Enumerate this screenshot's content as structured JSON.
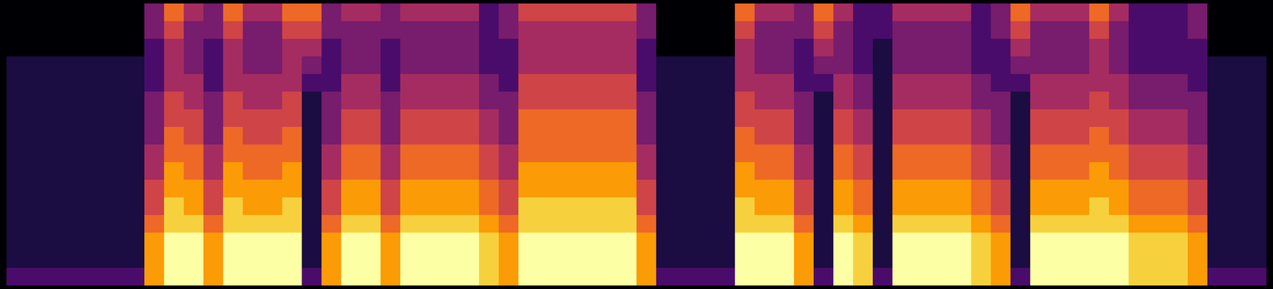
{
  "chart_data": {
    "type": "heatmap",
    "color": "inferno",
    "tick_labels": false,
    "zlim": [
      0,
      9
    ],
    "cells": [
      [
        0,
        0,
        0,
        1,
        1,
        1,
        1,
        1,
        1,
        1,
        1,
        1,
        1,
        1,
        1,
        2
      ],
      [
        0,
        0,
        0,
        1,
        1,
        1,
        1,
        1,
        1,
        1,
        1,
        1,
        1,
        1,
        1,
        2
      ],
      [
        0,
        0,
        0,
        1,
        1,
        1,
        1,
        1,
        1,
        1,
        1,
        1,
        1,
        1,
        1,
        2
      ],
      [
        0,
        0,
        0,
        1,
        1,
        1,
        1,
        1,
        1,
        1,
        1,
        1,
        1,
        1,
        1,
        2
      ],
      [
        0,
        0,
        0,
        1,
        1,
        1,
        1,
        1,
        1,
        1,
        1,
        1,
        1,
        1,
        1,
        2
      ],
      [
        0,
        0,
        0,
        1,
        1,
        1,
        1,
        1,
        1,
        1,
        1,
        1,
        1,
        1,
        1,
        2
      ],
      [
        0,
        0,
        0,
        1,
        1,
        1,
        1,
        1,
        1,
        1,
        1,
        1,
        1,
        1,
        1,
        2
      ],
      [
        3,
        3,
        2,
        2,
        2,
        3,
        3,
        3,
        4,
        4,
        5,
        5,
        6,
        7,
        7,
        7
      ],
      [
        6,
        5,
        4,
        4,
        4,
        5,
        5,
        6,
        6,
        7,
        7,
        8,
        8,
        9,
        9,
        9
      ],
      [
        4,
        3,
        3,
        3,
        4,
        4,
        5,
        5,
        6,
        6,
        7,
        7,
        8,
        9,
        9,
        9
      ],
      [
        3,
        3,
        2,
        2,
        2,
        3,
        3,
        3,
        4,
        4,
        5,
        5,
        6,
        7,
        7,
        7
      ],
      [
        6,
        5,
        4,
        4,
        4,
        5,
        5,
        6,
        6,
        7,
        7,
        8,
        8,
        9,
        9,
        9
      ],
      [
        4,
        3,
        3,
        3,
        4,
        4,
        5,
        5,
        6,
        6,
        7,
        7,
        8,
        9,
        9,
        9
      ],
      [
        4,
        3,
        3,
        3,
        4,
        4,
        5,
        5,
        6,
        6,
        7,
        7,
        8,
        9,
        9,
        9
      ],
      [
        6,
        5,
        4,
        4,
        4,
        5,
        5,
        6,
        6,
        7,
        7,
        8,
        8,
        9,
        9,
        9
      ],
      [
        6,
        5,
        4,
        3,
        2,
        1,
        1,
        1,
        1,
        1,
        1,
        1,
        1,
        1,
        1,
        2
      ],
      [
        3,
        3,
        2,
        2,
        2,
        3,
        3,
        3,
        4,
        4,
        5,
        5,
        6,
        7,
        7,
        7
      ],
      [
        4,
        3,
        3,
        3,
        4,
        4,
        5,
        5,
        6,
        6,
        7,
        7,
        8,
        9,
        9,
        9
      ],
      [
        4,
        3,
        3,
        3,
        4,
        4,
        5,
        5,
        6,
        6,
        7,
        7,
        8,
        9,
        9,
        9
      ],
      [
        3,
        3,
        2,
        2,
        2,
        3,
        3,
        3,
        4,
        4,
        5,
        5,
        6,
        7,
        7,
        7
      ],
      [
        4,
        3,
        3,
        3,
        4,
        4,
        5,
        5,
        6,
        6,
        7,
        7,
        8,
        9,
        9,
        9
      ],
      [
        4,
        3,
        3,
        3,
        4,
        4,
        5,
        5,
        6,
        6,
        7,
        7,
        8,
        9,
        9,
        9
      ],
      [
        4,
        3,
        3,
        3,
        4,
        4,
        5,
        5,
        6,
        6,
        7,
        7,
        8,
        9,
        9,
        9
      ],
      [
        4,
        3,
        3,
        3,
        4,
        4,
        5,
        5,
        6,
        6,
        7,
        7,
        8,
        9,
        9,
        9
      ],
      [
        2,
        2,
        2,
        2,
        3,
        3,
        4,
        4,
        5,
        5,
        6,
        6,
        7,
        8,
        8,
        8
      ],
      [
        3,
        3,
        2,
        2,
        2,
        3,
        3,
        3,
        4,
        4,
        5,
        5,
        6,
        7,
        7,
        7
      ],
      [
        5,
        4,
        4,
        4,
        5,
        5,
        6,
        6,
        6,
        7,
        7,
        8,
        8,
        9,
        9,
        9
      ],
      [
        5,
        4,
        4,
        4,
        5,
        5,
        6,
        6,
        6,
        7,
        7,
        8,
        8,
        9,
        9,
        9
      ],
      [
        5,
        4,
        4,
        4,
        5,
        5,
        6,
        6,
        6,
        7,
        7,
        8,
        8,
        9,
        9,
        9
      ],
      [
        5,
        4,
        4,
        4,
        5,
        5,
        6,
        6,
        6,
        7,
        7,
        8,
        8,
        9,
        9,
        9
      ],
      [
        5,
        4,
        4,
        4,
        5,
        5,
        6,
        6,
        6,
        7,
        7,
        8,
        8,
        9,
        9,
        9
      ],
      [
        5,
        4,
        4,
        4,
        5,
        5,
        6,
        6,
        6,
        7,
        7,
        8,
        8,
        9,
        9,
        9
      ],
      [
        3,
        3,
        2,
        2,
        2,
        3,
        3,
        3,
        4,
        4,
        5,
        5,
        6,
        7,
        7,
        7
      ],
      [
        0,
        0,
        0,
        1,
        1,
        1,
        1,
        1,
        1,
        1,
        1,
        1,
        1,
        1,
        1,
        2
      ],
      [
        0,
        0,
        0,
        1,
        1,
        1,
        1,
        1,
        1,
        1,
        1,
        1,
        1,
        1,
        1,
        2
      ],
      [
        0,
        0,
        0,
        1,
        1,
        1,
        1,
        1,
        1,
        1,
        1,
        1,
        1,
        1,
        1,
        2
      ],
      [
        0,
        0,
        0,
        1,
        1,
        1,
        1,
        1,
        1,
        1,
        1,
        1,
        1,
        1,
        1,
        2
      ],
      [
        6,
        5,
        4,
        4,
        4,
        5,
        5,
        6,
        6,
        7,
        7,
        8,
        8,
        9,
        9,
        9
      ],
      [
        4,
        3,
        3,
        3,
        4,
        4,
        5,
        5,
        6,
        6,
        7,
        7,
        8,
        9,
        9,
        9
      ],
      [
        4,
        3,
        3,
        3,
        4,
        4,
        5,
        5,
        6,
        6,
        7,
        7,
        8,
        9,
        9,
        9
      ],
      [
        3,
        3,
        2,
        2,
        2,
        3,
        3,
        3,
        4,
        4,
        5,
        5,
        6,
        7,
        7,
        7
      ],
      [
        6,
        5,
        4,
        3,
        2,
        1,
        1,
        1,
        1,
        1,
        1,
        1,
        1,
        1,
        1,
        2
      ],
      [
        4,
        3,
        3,
        3,
        4,
        4,
        5,
        5,
        6,
        6,
        7,
        7,
        8,
        9,
        9,
        9
      ],
      [
        2,
        2,
        2,
        2,
        3,
        3,
        4,
        4,
        5,
        5,
        6,
        6,
        7,
        8,
        8,
        8
      ],
      [
        2,
        2,
        1,
        1,
        1,
        1,
        1,
        1,
        1,
        1,
        1,
        1,
        1,
        1,
        1,
        2
      ],
      [
        4,
        3,
        3,
        3,
        4,
        4,
        5,
        5,
        6,
        6,
        7,
        7,
        8,
        9,
        9,
        9
      ],
      [
        4,
        3,
        3,
        3,
        4,
        4,
        5,
        5,
        6,
        6,
        7,
        7,
        8,
        9,
        9,
        9
      ],
      [
        4,
        3,
        3,
        3,
        4,
        4,
        5,
        5,
        6,
        6,
        7,
        7,
        8,
        9,
        9,
        9
      ],
      [
        4,
        3,
        3,
        3,
        4,
        4,
        5,
        5,
        6,
        6,
        7,
        7,
        8,
        9,
        9,
        9
      ],
      [
        2,
        2,
        2,
        2,
        3,
        3,
        4,
        4,
        5,
        5,
        6,
        6,
        7,
        8,
        8,
        8
      ],
      [
        3,
        3,
        2,
        2,
        2,
        3,
        3,
        3,
        4,
        4,
        5,
        5,
        6,
        7,
        7,
        7
      ],
      [
        6,
        5,
        4,
        3,
        2,
        1,
        1,
        1,
        1,
        1,
        1,
        1,
        1,
        1,
        1,
        2
      ],
      [
        4,
        3,
        3,
        3,
        4,
        4,
        5,
        5,
        6,
        6,
        7,
        7,
        8,
        9,
        9,
        9
      ],
      [
        4,
        3,
        3,
        3,
        4,
        4,
        5,
        5,
        6,
        6,
        7,
        7,
        8,
        9,
        9,
        9
      ],
      [
        4,
        3,
        3,
        3,
        4,
        4,
        5,
        5,
        6,
        6,
        7,
        7,
        8,
        9,
        9,
        9
      ],
      [
        6,
        5,
        4,
        4,
        4,
        5,
        5,
        6,
        6,
        7,
        7,
        8,
        8,
        9,
        9,
        9
      ],
      [
        4,
        3,
        3,
        3,
        4,
        4,
        5,
        5,
        6,
        6,
        7,
        7,
        8,
        9,
        9,
        9
      ],
      [
        2,
        2,
        2,
        2,
        3,
        3,
        4,
        4,
        5,
        5,
        6,
        6,
        7,
        8,
        8,
        8
      ],
      [
        2,
        2,
        2,
        2,
        3,
        3,
        4,
        4,
        5,
        5,
        6,
        6,
        7,
        8,
        8,
        8
      ],
      [
        2,
        2,
        2,
        2,
        3,
        3,
        4,
        4,
        5,
        5,
        6,
        6,
        7,
        8,
        8,
        8
      ],
      [
        3,
        3,
        2,
        2,
        2,
        3,
        3,
        3,
        4,
        4,
        5,
        5,
        6,
        7,
        7,
        7
      ],
      [
        0,
        0,
        0,
        1,
        1,
        1,
        1,
        1,
        1,
        1,
        1,
        1,
        1,
        1,
        1,
        2
      ],
      [
        0,
        0,
        0,
        1,
        1,
        1,
        1,
        1,
        1,
        1,
        1,
        1,
        1,
        1,
        1,
        2
      ],
      [
        0,
        0,
        0,
        1,
        1,
        1,
        1,
        1,
        1,
        1,
        1,
        1,
        1,
        1,
        1,
        2
      ]
    ]
  }
}
